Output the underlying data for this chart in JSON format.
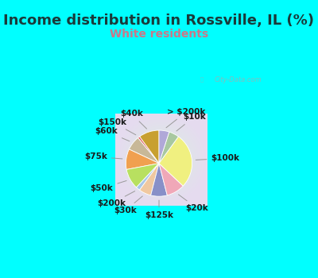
{
  "title": "Income distribution in Rossville, IL (%)",
  "subtitle": "White residents",
  "title_color": "#1a3a3a",
  "subtitle_color": "#cc7788",
  "top_bg_color": "#00FFFF",
  "chart_bg_start": "#c8eedd",
  "chart_bg_end": "#aaddee",
  "labels": [
    "> $200k",
    "$10k",
    "$100k",
    "$20k",
    "$125k",
    "$30k",
    "$200k",
    "$50k",
    "$75k",
    "$60k",
    "$150k",
    "$40k"
  ],
  "values": [
    5,
    5,
    27,
    9,
    8,
    6,
    2,
    10,
    10,
    7,
    1,
    10
  ],
  "colors": [
    "#b0a8d8",
    "#a8c8a0",
    "#f0f080",
    "#f0a8b8",
    "#8890c8",
    "#f0c8a0",
    "#a8c8e8",
    "#b8e060",
    "#f0a050",
    "#c8b898",
    "#e06060",
    "#c8a030"
  ],
  "label_fontsize": 7.5,
  "title_fontsize": 13,
  "subtitle_fontsize": 10,
  "watermark": "City-Data.com"
}
